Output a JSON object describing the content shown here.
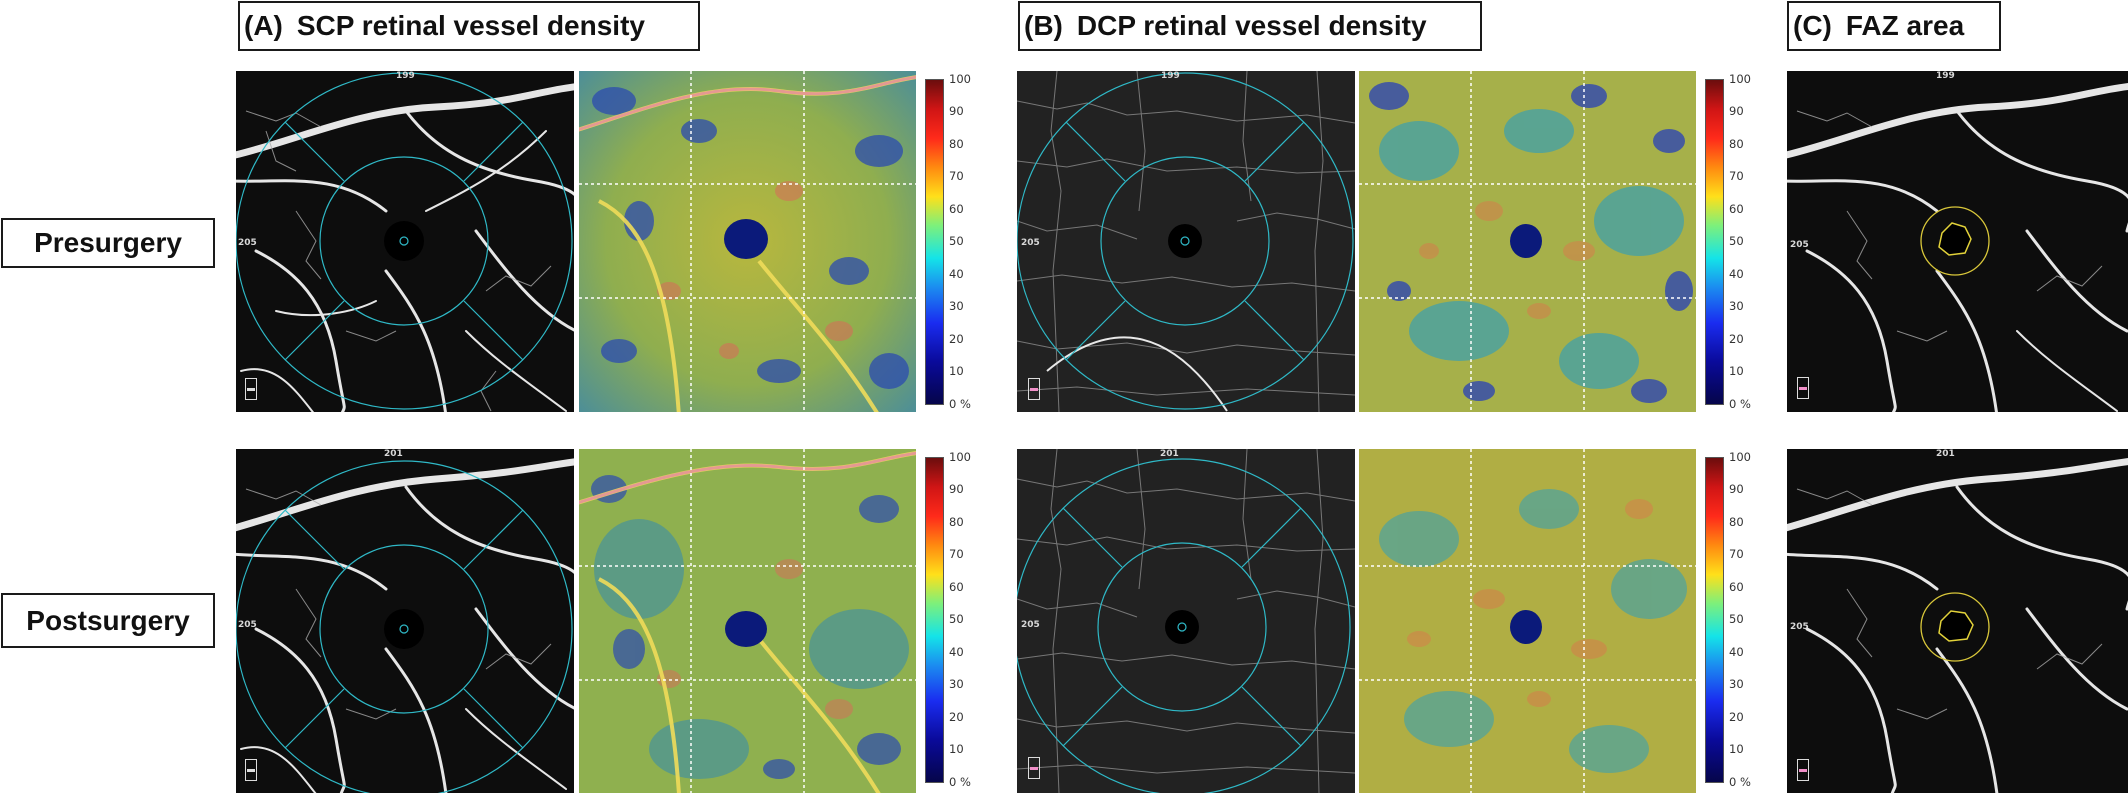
{
  "sections": [
    {
      "tag": "(A)",
      "title": "SCP retinal vessel density"
    },
    {
      "tag": "(B)",
      "title": "DCP retinal vessel density"
    },
    {
      "tag": "(C)",
      "title": "FAZ area"
    }
  ],
  "rows": [
    "Presurgery",
    "Postsurgery"
  ],
  "scan_labels": {
    "pre": {
      "top": "199",
      "left": "205"
    },
    "post": {
      "top": "201",
      "left": "205"
    }
  },
  "colorbar_ticks": [
    "100",
    "90",
    "80",
    "70",
    "60",
    "50",
    "40",
    "30",
    "20",
    "10",
    "0 %"
  ],
  "colorbar_colors": [
    "#6b0d0d",
    "#d01515",
    "#ff2a1a",
    "#ff8a10",
    "#ffe01a",
    "#7cf07c",
    "#14e4e8",
    "#1b8cf0",
    "#1a2cf0",
    "#0a0a9a",
    "#05054a"
  ]
}
